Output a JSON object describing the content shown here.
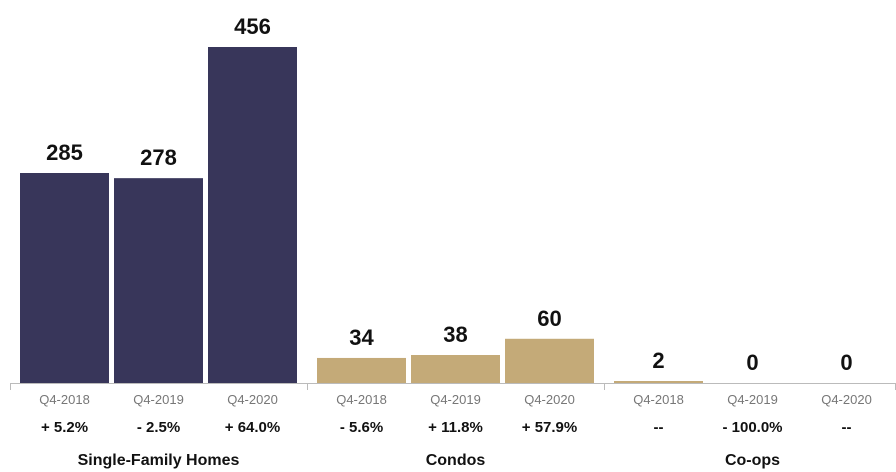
{
  "chart_data": {
    "type": "bar",
    "colors": {
      "Single-Family Homes": "#38365a",
      "Condos": "#c4aa78",
      "Co-ops": "#c4aa78",
      "axis": "#bbbbbb"
    },
    "ylim": [
      0,
      456
    ],
    "groups": [
      {
        "name": "Single-Family Homes",
        "categories": [
          "Q4-2018",
          "Q4-2019",
          "Q4-2020"
        ],
        "values": [
          285,
          278,
          456
        ],
        "changes": [
          "+ 5.2%",
          "- 2.5%",
          "+ 64.0%"
        ]
      },
      {
        "name": "Condos",
        "categories": [
          "Q4-2018",
          "Q4-2019",
          "Q4-2020"
        ],
        "values": [
          34,
          38,
          60
        ],
        "changes": [
          "- 5.6%",
          "+ 11.8%",
          "+ 57.9%"
        ]
      },
      {
        "name": "Co-ops",
        "categories": [
          "Q4-2018",
          "Q4-2019",
          "Q4-2020"
        ],
        "values": [
          2,
          0,
          0
        ],
        "changes": [
          "--",
          "- 100.0%",
          "--"
        ]
      }
    ]
  }
}
